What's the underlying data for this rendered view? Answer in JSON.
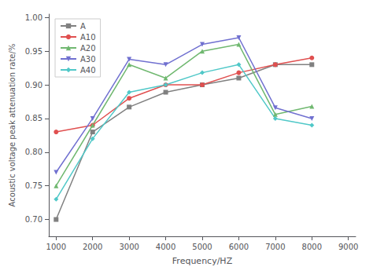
{
  "chart_data": {
    "type": "line",
    "x": [
      1000,
      2000,
      3000,
      4000,
      5000,
      6000,
      7000,
      8000
    ],
    "series": [
      {
        "name": "A",
        "color": "#808080",
        "marker": "square",
        "values": [
          0.7,
          0.83,
          0.867,
          0.889,
          0.9,
          0.91,
          0.93,
          0.93
        ]
      },
      {
        "name": "A10",
        "color": "#e05050",
        "marker": "circle",
        "values": [
          0.83,
          0.84,
          0.88,
          0.9,
          0.9,
          0.918,
          0.93,
          0.94
        ]
      },
      {
        "name": "A20",
        "color": "#70b870",
        "marker": "triangle_up",
        "values": [
          0.75,
          0.84,
          0.93,
          0.91,
          0.95,
          0.96,
          0.856,
          0.868
        ]
      },
      {
        "name": "A30",
        "color": "#7070d0",
        "marker": "triangle_down",
        "values": [
          0.77,
          0.85,
          0.938,
          0.93,
          0.96,
          0.97,
          0.866,
          0.85
        ]
      },
      {
        "name": "A40",
        "color": "#50c8c8",
        "marker": "diamond",
        "values": [
          0.73,
          0.82,
          0.889,
          0.9,
          0.918,
          0.93,
          0.85,
          0.84
        ]
      }
    ],
    "xlabel": "Frequency/HZ",
    "ylabel": "Acoustic voltage peak attenuation rate/%",
    "xlim": [
      800,
      9200
    ],
    "ylim": [
      0.675,
      1.005
    ],
    "xticks": [
      1000,
      2000,
      3000,
      4000,
      5000,
      6000,
      7000,
      8000,
      9000
    ],
    "yticks": [
      {
        "value": 0.7,
        "label": "0.70"
      },
      {
        "value": 0.75,
        "label": "0.75"
      },
      {
        "value": 0.8,
        "label": "0.80"
      },
      {
        "value": 0.85,
        "label": "0.85"
      },
      {
        "value": 0.9,
        "label": "0.90"
      },
      {
        "value": 0.95,
        "label": "0.95"
      },
      {
        "value": 1.0,
        "label": "1.00"
      }
    ],
    "grid": false,
    "legend": "upper left"
  }
}
